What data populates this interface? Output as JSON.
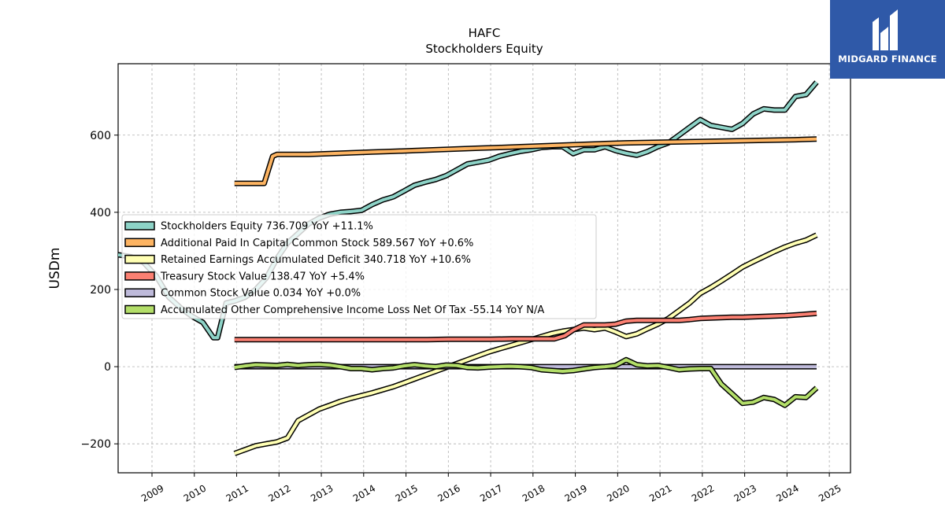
{
  "chart_data": {
    "type": "line",
    "title": "HAFC",
    "subtitle": "Stockholders  Equity",
    "ylabel": "USDm",
    "xlabel": "",
    "ylim": [
      -275,
      785
    ],
    "xlim": [
      2008.2,
      2025.5
    ],
    "yticks": [
      -200,
      0,
      200,
      400,
      600
    ],
    "ytick_labels": [
      "−200",
      "0",
      "200",
      "400",
      "600"
    ],
    "xticks": [
      2009,
      2010,
      2011,
      2012,
      2013,
      2014,
      2015,
      2016,
      2017,
      2018,
      2019,
      2020,
      2021,
      2022,
      2023,
      2024,
      2025
    ],
    "xtick_labels": [
      "2009",
      "2010",
      "2011",
      "2012",
      "2013",
      "2014",
      "2015",
      "2016",
      "2017",
      "2018",
      "2019",
      "2020",
      "2021",
      "2022",
      "2023",
      "2024",
      "2025"
    ],
    "grid": true,
    "legend_position": "center-left",
    "series": [
      {
        "name": "Stockholders Equity",
        "legend_label": "Stockholders Equity  736.709 YoY +11.1%",
        "color": "#8dd3c7",
        "x": [
          2008.2,
          2008.5,
          2008.8,
          2009.1,
          2009.4,
          2009.7,
          2009.95,
          2010.2,
          2010.45,
          2010.55,
          2010.75,
          2010.95,
          2011.2,
          2011.45,
          2011.7,
          2011.95,
          2012.2,
          2012.45,
          2012.7,
          2012.95,
          2013.2,
          2013.45,
          2013.7,
          2013.95,
          2014.2,
          2014.45,
          2014.7,
          2014.95,
          2015.2,
          2015.45,
          2015.7,
          2015.95,
          2016.2,
          2016.45,
          2016.7,
          2016.95,
          2017.2,
          2017.45,
          2017.7,
          2017.95,
          2018.2,
          2018.45,
          2018.7,
          2018.95,
          2019.2,
          2019.45,
          2019.7,
          2019.95,
          2020.2,
          2020.45,
          2020.7,
          2020.95,
          2021.2,
          2021.45,
          2021.7,
          2021.95,
          2022.2,
          2022.45,
          2022.7,
          2022.95,
          2023.2,
          2023.45,
          2023.7,
          2023.95,
          2024.2,
          2024.45,
          2024.7
        ],
        "values": [
          290,
          285,
          270,
          235,
          180,
          150,
          130,
          115,
          75,
          75,
          165,
          170,
          180,
          200,
          230,
          280,
          320,
          345,
          370,
          385,
          395,
          400,
          402,
          405,
          420,
          432,
          440,
          455,
          470,
          478,
          485,
          495,
          510,
          525,
          530,
          535,
          545,
          552,
          558,
          562,
          568,
          570,
          570,
          552,
          562,
          562,
          570,
          560,
          553,
          548,
          557,
          570,
          580,
          600,
          620,
          640,
          625,
          620,
          615,
          630,
          655,
          668,
          665,
          665,
          700,
          705,
          737
        ]
      },
      {
        "name": "Additional Paid In Capital Common Stock",
        "legend_label": "Additional Paid In Capital Common Stock  589.567 YoY +0.6%",
        "color": "#fdb462",
        "x": [
          2010.95,
          2011.2,
          2011.45,
          2011.65,
          2011.85,
          2011.95,
          2012.2,
          2012.7,
          2013.2,
          2013.7,
          2014.2,
          2014.7,
          2015.2,
          2015.7,
          2016.2,
          2016.7,
          2017.2,
          2017.7,
          2018.2,
          2018.7,
          2019.2,
          2019.7,
          2020.2,
          2020.7,
          2021.2,
          2021.7,
          2022.2,
          2022.7,
          2023.2,
          2023.7,
          2024.2,
          2024.7
        ],
        "values": [
          475,
          475,
          475,
          475,
          545,
          550,
          550,
          550,
          552,
          554,
          556,
          558,
          560,
          562,
          564,
          566,
          568,
          570,
          572,
          574,
          576,
          578,
          580,
          581,
          582,
          583,
          584,
          585,
          586,
          587,
          588,
          590
        ]
      },
      {
        "name": "Retained Earnings Accumulated Deficit",
        "legend_label": "Retained Earnings Accumulated Deficit  340.718 YoY +10.6%",
        "color": "#ffffb3",
        "x": [
          2010.95,
          2011.2,
          2011.45,
          2011.7,
          2011.95,
          2012.2,
          2012.45,
          2012.7,
          2012.95,
          2013.2,
          2013.45,
          2013.7,
          2013.95,
          2014.2,
          2014.45,
          2014.7,
          2014.95,
          2015.2,
          2015.45,
          2015.7,
          2015.95,
          2016.2,
          2016.45,
          2016.7,
          2016.95,
          2017.2,
          2017.45,
          2017.7,
          2017.95,
          2018.2,
          2018.45,
          2018.7,
          2018.95,
          2019.2,
          2019.45,
          2019.7,
          2019.95,
          2020.2,
          2020.45,
          2020.7,
          2020.95,
          2021.2,
          2021.45,
          2021.7,
          2021.95,
          2022.2,
          2022.45,
          2022.7,
          2022.95,
          2023.2,
          2023.45,
          2023.7,
          2023.95,
          2024.2,
          2024.45,
          2024.7
        ],
        "values": [
          -225,
          -215,
          -205,
          -200,
          -195,
          -185,
          -140,
          -125,
          -110,
          -100,
          -90,
          -82,
          -75,
          -68,
          -60,
          -52,
          -42,
          -32,
          -22,
          -12,
          -2,
          8,
          18,
          28,
          38,
          46,
          54,
          62,
          70,
          78,
          86,
          92,
          96,
          100,
          96,
          100,
          90,
          78,
          85,
          98,
          110,
          125,
          145,
          165,
          190,
          205,
          222,
          240,
          258,
          272,
          285,
          298,
          310,
          320,
          328,
          341
        ]
      },
      {
        "name": "Treasury Stock Value",
        "legend_label": "Treasury Stock Value  138.47 YoY +5.4%",
        "color": "#fb8072",
        "x": [
          2010.95,
          2011.5,
          2012.0,
          2012.5,
          2013.0,
          2013.5,
          2014.0,
          2014.5,
          2015.0,
          2015.5,
          2016.0,
          2016.5,
          2017.0,
          2017.5,
          2018.0,
          2018.5,
          2018.75,
          2018.95,
          2019.2,
          2019.45,
          2019.7,
          2019.95,
          2020.2,
          2020.45,
          2020.7,
          2020.95,
          2021.2,
          2021.45,
          2021.7,
          2021.95,
          2022.2,
          2022.45,
          2022.7,
          2022.95,
          2023.2,
          2023.45,
          2023.7,
          2023.95,
          2024.2,
          2024.45,
          2024.7
        ],
        "values": [
          70,
          70,
          70,
          70,
          70,
          70,
          70,
          70,
          70,
          70,
          71,
          71,
          71,
          72,
          72,
          72,
          80,
          95,
          108,
          108,
          108,
          110,
          118,
          120,
          120,
          120,
          120,
          120,
          122,
          125,
          126,
          127,
          128,
          128,
          129,
          130,
          131,
          132,
          134,
          136,
          138
        ]
      },
      {
        "name": "Common Stock Value",
        "legend_label": "Common Stock Value  0.034 YoY +0.0%",
        "color": "#bebada",
        "x": [
          2010.95,
          2024.7
        ],
        "values": [
          0.034,
          0.034
        ]
      },
      {
        "name": "Accumulated Other Comprehensive Income Loss Net Of Tax",
        "legend_label": "Accumulated Other Comprehensive Income Loss Net Of Tax  -55.14 YoY N/A",
        "color": "#b3de69",
        "x": [
          2010.95,
          2011.2,
          2011.45,
          2011.7,
          2011.95,
          2012.2,
          2012.45,
          2012.7,
          2012.95,
          2013.2,
          2013.45,
          2013.7,
          2013.95,
          2014.2,
          2014.45,
          2014.7,
          2014.95,
          2015.2,
          2015.45,
          2015.7,
          2015.95,
          2016.2,
          2016.45,
          2016.7,
          2016.95,
          2017.2,
          2017.45,
          2017.7,
          2017.95,
          2018.2,
          2018.45,
          2018.7,
          2018.95,
          2019.2,
          2019.45,
          2019.7,
          2019.95,
          2020.2,
          2020.45,
          2020.7,
          2020.95,
          2021.2,
          2021.45,
          2021.7,
          2021.95,
          2022.2,
          2022.45,
          2022.7,
          2022.95,
          2023.2,
          2023.45,
          2023.7,
          2023.95,
          2024.2,
          2024.45,
          2024.7
        ],
        "values": [
          -2,
          2,
          5,
          4,
          3,
          6,
          3,
          5,
          6,
          4,
          0,
          -5,
          -5,
          -8,
          -5,
          -3,
          2,
          5,
          2,
          0,
          4,
          3,
          -2,
          -3,
          -1,
          0,
          1,
          0,
          -2,
          -8,
          -10,
          -12,
          -10,
          -6,
          -2,
          0,
          3,
          18,
          5,
          2,
          3,
          -2,
          -8,
          -6,
          -5,
          -5,
          -45,
          -70,
          -95,
          -92,
          -80,
          -85,
          -100,
          -78,
          -80,
          -55
        ]
      }
    ]
  },
  "logo": {
    "text": "MIDGARD FINANCE",
    "color": "#2f59a8"
  }
}
